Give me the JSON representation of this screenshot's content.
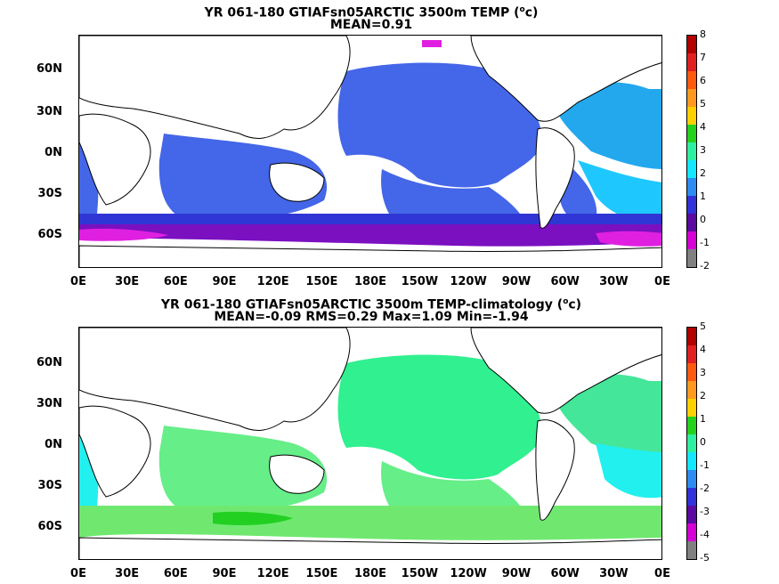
{
  "panels": [
    {
      "title1_pre": "YR 061-180 GTIAFsn05ARCTIC 3500m TEMP (",
      "title1_sup": "o",
      "title1_post": "c)",
      "title2": "MEAN=0.91",
      "lat_labels": [
        "60N",
        "30N",
        "0N",
        "30S",
        "60S"
      ],
      "lon_labels": [
        "0E",
        "30E",
        "60E",
        "90E",
        "120E",
        "150E",
        "180E",
        "150W",
        "120W",
        "90W",
        "60W",
        "30W",
        "0E"
      ],
      "colorbar_labels": [
        "8",
        "7",
        "6",
        "5",
        "4",
        "3",
        "2",
        "1",
        "0",
        "-1",
        "-2"
      ],
      "colorbar_colors": [
        "#b00000",
        "#e02020",
        "#ff5a10",
        "#ff9a20",
        "#ffd000",
        "#24d21e",
        "#2ef0a0",
        "#14e8ff",
        "#2e8cf0",
        "#3232d8",
        "#5a0aa0",
        "#d400d4",
        "#808080"
      ]
    },
    {
      "title1_pre": "YR 061-180 GTIAFsn05ARCTIC 3500m TEMP-climatology (",
      "title1_sup": "o",
      "title1_post": "c)",
      "title2": "MEAN=-0.09   RMS=0.29   Max=1.09   Min=-1.94",
      "lat_labels": [
        "60N",
        "30N",
        "0N",
        "30S",
        "60S"
      ],
      "lon_labels": [
        "0E",
        "30E",
        "60E",
        "90E",
        "120E",
        "150E",
        "180E",
        "150W",
        "120W",
        "90W",
        "60W",
        "30W",
        "0E"
      ],
      "colorbar_labels": [
        "5",
        "4",
        "3",
        "2",
        "1",
        "0",
        "-1",
        "-2",
        "-3",
        "-4",
        "-5"
      ],
      "colorbar_colors": [
        "#b00000",
        "#e02020",
        "#ff5a10",
        "#ff9a20",
        "#ffd000",
        "#24d21e",
        "#2ef0a0",
        "#14e8ff",
        "#2e8cf0",
        "#3232d8",
        "#5a0aa0",
        "#d400d4",
        "#808080"
      ]
    }
  ],
  "chart_data": [
    {
      "type": "heatmap",
      "title": "YR 061-180 GTIAFsn05ARCTIC 3500m TEMP (oc)",
      "subtitle": "MEAN=0.91",
      "x_ticks": [
        "0E",
        "30E",
        "60E",
        "90E",
        "120E",
        "150E",
        "180E",
        "150W",
        "120W",
        "90W",
        "60W",
        "30W",
        "0E"
      ],
      "y_ticks": [
        "60N",
        "30N",
        "0N",
        "30S",
        "60S"
      ],
      "colorbar_ticks": [
        8,
        7,
        6,
        5,
        4,
        3,
        2,
        1,
        0,
        -1,
        -2
      ],
      "colorbar_range": [
        -2,
        8
      ],
      "mean": 0.91
    },
    {
      "type": "heatmap",
      "title": "YR 061-180 GTIAFsn05ARCTIC 3500m TEMP-climatology (oc)",
      "subtitle": "MEAN=-0.09   RMS=0.29   Max=1.09   Min=-1.94",
      "x_ticks": [
        "0E",
        "30E",
        "60E",
        "90E",
        "120E",
        "150E",
        "180E",
        "150W",
        "120W",
        "90W",
        "60W",
        "30W",
        "0E"
      ],
      "y_ticks": [
        "60N",
        "30N",
        "0N",
        "30S",
        "60S"
      ],
      "colorbar_ticks": [
        5,
        4,
        3,
        2,
        1,
        0,
        -1,
        -2,
        -3,
        -4,
        -5
      ],
      "colorbar_range": [
        -5,
        5
      ],
      "mean": -0.09,
      "rms": 0.29,
      "max": 1.09,
      "min": -1.94
    }
  ]
}
